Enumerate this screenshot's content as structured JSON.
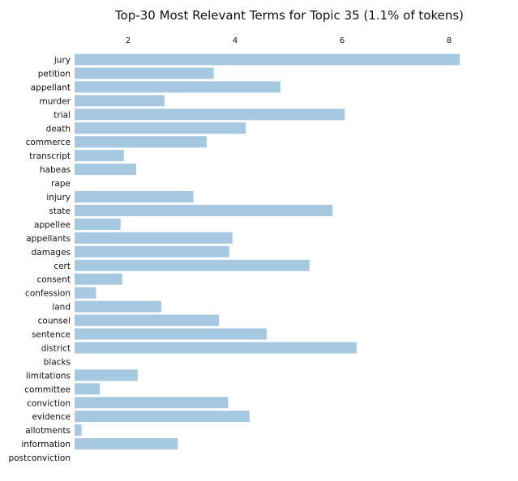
{
  "chart_data": {
    "type": "bar",
    "orientation": "horizontal",
    "title": "Top-30 Most Relevant Terms for Topic 35 (1.1% of tokens)",
    "xlabel": "",
    "ylabel": "",
    "xlim": [
      1.0,
      8.3
    ],
    "x_ticks": [
      2,
      4,
      6,
      8
    ],
    "x_tick_labels": [
      "2",
      "4",
      "6",
      "8"
    ],
    "x_axis_position": "top",
    "grid": false,
    "bar_color": "#a6c8e0",
    "categories": [
      "jury",
      "petition",
      "appellant",
      "murder",
      "trial",
      "death",
      "commerce",
      "transcript",
      "habeas",
      "rape",
      "injury",
      "state",
      "appellee",
      "appellants",
      "damages",
      "cert",
      "consent",
      "confession",
      "land",
      "counsel",
      "sentence",
      "district",
      "blacks",
      "limitations",
      "committee",
      "conviction",
      "evidence",
      "allotments",
      "information",
      "postconviction"
    ],
    "values": [
      8.2,
      3.6,
      4.85,
      2.68,
      6.05,
      4.2,
      3.47,
      1.92,
      2.15,
      1.0,
      3.22,
      5.82,
      1.86,
      3.95,
      3.89,
      5.39,
      1.89,
      1.4,
      2.62,
      3.7,
      4.59,
      6.27,
      1.0,
      2.18,
      1.47,
      3.87,
      4.27,
      1.13,
      2.93,
      1.0
    ]
  }
}
